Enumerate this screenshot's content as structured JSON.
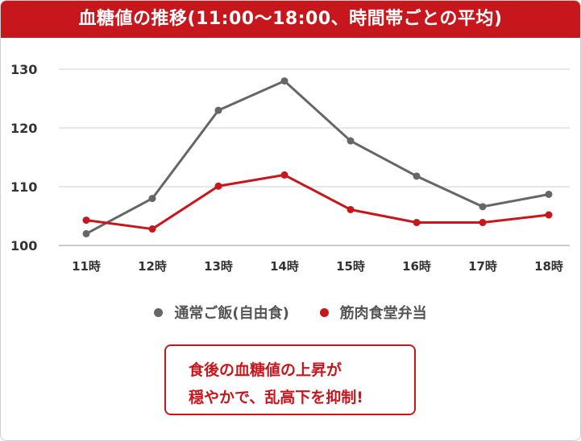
{
  "title": "血糖値の推移(11:00〜18:00、時間帯ごとの平均)",
  "callout": {
    "line1": "食後の血糖値の上昇が",
    "line2": "穏やかで、乱高下を抑制!"
  },
  "colors": {
    "accent": "#c8161d",
    "gray_series": "#666666"
  },
  "chart_data": {
    "type": "line",
    "title": "血糖値の推移(11:00〜18:00、時間帯ごとの平均)",
    "categories": [
      "11時",
      "12時",
      "13時",
      "14時",
      "15時",
      "16時",
      "17時",
      "18時"
    ],
    "y_ticks": [
      100,
      110,
      120,
      130
    ],
    "ylim": [
      100,
      130
    ],
    "grid": true,
    "legend_position": "bottom",
    "series": [
      {
        "name": "通常ご飯(自由食)",
        "color": "#666666",
        "values": [
          102,
          108,
          123,
          128,
          117.8,
          111.8,
          106.6,
          108.7
        ]
      },
      {
        "name": "筋肉食堂弁当",
        "color": "#c8161d",
        "values": [
          104.3,
          102.8,
          110.1,
          112,
          106.1,
          103.9,
          103.9,
          105.2
        ]
      }
    ]
  }
}
